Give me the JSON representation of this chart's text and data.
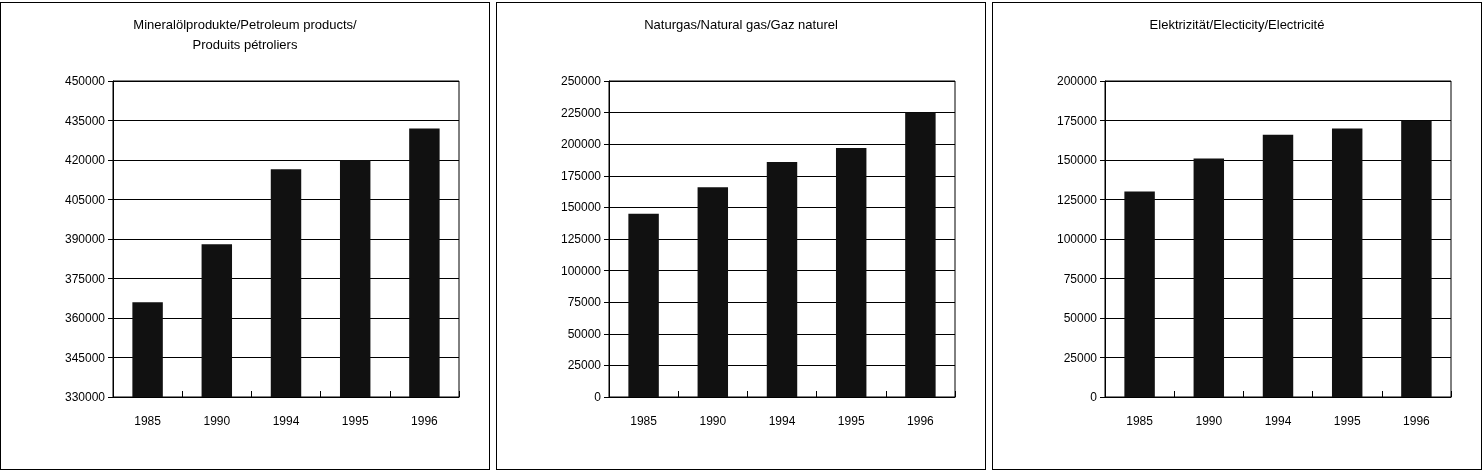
{
  "chart_data": [
    {
      "type": "bar",
      "title": "Mineralölprodukte/Petroleum products/Produits pétroliers",
      "categories": [
        "1985",
        "1990",
        "1994",
        "1995",
        "1996"
      ],
      "values": [
        366000,
        388000,
        416500,
        420000,
        432000
      ],
      "color": "#111111",
      "ylim": [
        330000,
        450000
      ],
      "yticks": [
        330000,
        345000,
        360000,
        375000,
        390000,
        405000,
        420000,
        435000,
        450000
      ],
      "grid": "y"
    },
    {
      "type": "bar",
      "title": "Naturgas/Natural gas/Gaz naturel",
      "categories": [
        "1985",
        "1990",
        "1994",
        "1995",
        "1996"
      ],
      "values": [
        145000,
        166000,
        186000,
        197000,
        225000
      ],
      "color": "#111111",
      "ylim": [
        0,
        250000
      ],
      "yticks": [
        0,
        25000,
        50000,
        75000,
        100000,
        125000,
        150000,
        175000,
        200000,
        225000,
        250000
      ],
      "grid": "y"
    },
    {
      "type": "bar",
      "title": "Elektrizität/Electicity/Electricité",
      "categories": [
        "1985",
        "1990",
        "1994",
        "1995",
        "1996"
      ],
      "values": [
        130000,
        151000,
        166000,
        170000,
        175000
      ],
      "color": "#111111",
      "ylim": [
        0,
        200000
      ],
      "yticks": [
        0,
        25000,
        50000,
        75000,
        100000,
        125000,
        150000,
        175000,
        200000
      ],
      "grid": "y"
    }
  ]
}
